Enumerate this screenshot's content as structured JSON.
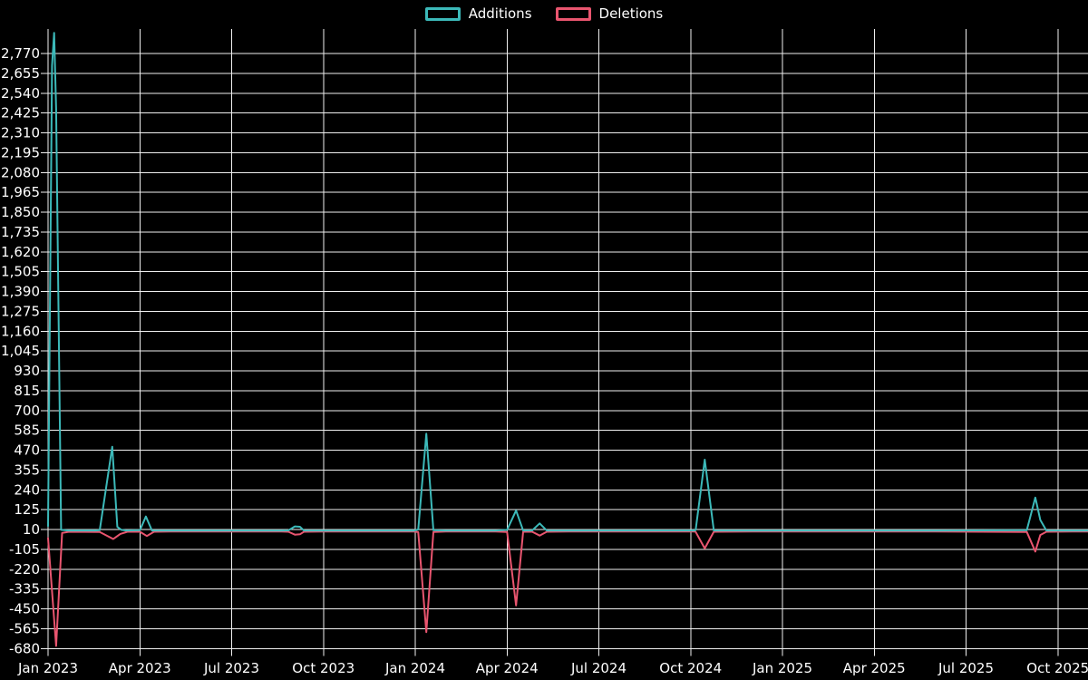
{
  "page": {
    "background": "#000000",
    "grid_color": "#efefef",
    "text_color": "#ffffff"
  },
  "legend": {
    "position": "top",
    "items": [
      {
        "label": "Additions",
        "color": "#3cb9b9"
      },
      {
        "label": "Deletions",
        "color": "#e9556f"
      }
    ]
  },
  "chart_data": {
    "type": "line",
    "title": "",
    "xlabel": "",
    "ylabel": "",
    "grid": true,
    "legend_position": "top-center",
    "x_axis": {
      "unit": "months (weekly data points)",
      "tick_labels": [
        "Jan 2023",
        "Apr 2023",
        "Jul 2023",
        "Oct 2023",
        "Jan 2024",
        "Apr 2024",
        "Jul 2024",
        "Oct 2024",
        "Jan 2025",
        "Apr 2025",
        "Jul 2025",
        "Oct 2025"
      ],
      "tick_month_step": 3,
      "range_months": [
        0,
        34
      ]
    },
    "y_axis": {
      "tick_values": [
        2770,
        2655,
        2540,
        2425,
        2310,
        2195,
        2080,
        1965,
        1850,
        1735,
        1620,
        1505,
        1390,
        1275,
        1160,
        1045,
        930,
        815,
        700,
        585,
        470,
        355,
        240,
        125,
        10,
        -105,
        -220,
        -335,
        -450,
        -565,
        -680
      ],
      "tick_step": 115,
      "ylim": [
        -680,
        2909
      ]
    },
    "series": [
      {
        "name": "Additions",
        "color": "#3cb9b9",
        "points": [
          [
            "2023-01-01",
            30
          ],
          [
            "2023-01-05",
            2700
          ],
          [
            "2023-01-07",
            2890
          ],
          [
            "2023-01-09",
            2450
          ],
          [
            "2023-01-14",
            8
          ],
          [
            "2023-01-21",
            4
          ],
          [
            "2023-02-18",
            4
          ],
          [
            "2023-02-22",
            6
          ],
          [
            "2023-03-04",
            490
          ],
          [
            "2023-03-09",
            25
          ],
          [
            "2023-03-13",
            8
          ],
          [
            "2023-03-18",
            4
          ],
          [
            "2023-04-01",
            6
          ],
          [
            "2023-04-07",
            85
          ],
          [
            "2023-04-13",
            4
          ],
          [
            "2023-05-01",
            3
          ],
          [
            "2023-07-01",
            3
          ],
          [
            "2023-08-20",
            3
          ],
          [
            "2023-08-27",
            5
          ],
          [
            "2023-09-03",
            28
          ],
          [
            "2023-09-08",
            26
          ],
          [
            "2023-09-12",
            4
          ],
          [
            "2023-10-01",
            3
          ],
          [
            "2023-12-30",
            3
          ],
          [
            "2024-01-04",
            10
          ],
          [
            "2024-01-12",
            565
          ],
          [
            "2024-01-19",
            6
          ],
          [
            "2024-02-01",
            3
          ],
          [
            "2024-03-20",
            3
          ],
          [
            "2024-04-01",
            8
          ],
          [
            "2024-04-10",
            120
          ],
          [
            "2024-04-17",
            4
          ],
          [
            "2024-04-26",
            5
          ],
          [
            "2024-05-03",
            45
          ],
          [
            "2024-05-10",
            4
          ],
          [
            "2024-06-01",
            3
          ],
          [
            "2024-10-05",
            4
          ],
          [
            "2024-10-06",
            8
          ],
          [
            "2024-10-15",
            415
          ],
          [
            "2024-10-24",
            4
          ],
          [
            "2024-12-01",
            3
          ],
          [
            "2025-06-01",
            3
          ],
          [
            "2025-08-31",
            6
          ],
          [
            "2025-09-09",
            195
          ],
          [
            "2025-09-14",
            65
          ],
          [
            "2025-09-20",
            4
          ],
          [
            "2025-10-15",
            3
          ],
          [
            "2025-11-01",
            3
          ]
        ]
      },
      {
        "name": "Deletions",
        "color": "#e9556f",
        "points": [
          [
            "2023-01-01",
            -40
          ],
          [
            "2023-01-09",
            -665
          ],
          [
            "2023-01-15",
            -10
          ],
          [
            "2023-01-22",
            -3
          ],
          [
            "2023-02-22",
            -4
          ],
          [
            "2023-03-05",
            -45
          ],
          [
            "2023-03-12",
            -16
          ],
          [
            "2023-03-19",
            -3
          ],
          [
            "2023-04-01",
            -3
          ],
          [
            "2023-04-08",
            -28
          ],
          [
            "2023-04-15",
            -3
          ],
          [
            "2023-05-01",
            -2
          ],
          [
            "2023-08-20",
            -2
          ],
          [
            "2023-08-27",
            -3
          ],
          [
            "2023-09-03",
            -20
          ],
          [
            "2023-09-08",
            -18
          ],
          [
            "2023-09-12",
            -3
          ],
          [
            "2023-10-01",
            -2
          ],
          [
            "2023-12-30",
            -2
          ],
          [
            "2024-01-04",
            -5
          ],
          [
            "2024-01-12",
            -585
          ],
          [
            "2024-01-19",
            -4
          ],
          [
            "2024-02-01",
            -2
          ],
          [
            "2024-03-20",
            -2
          ],
          [
            "2024-04-01",
            -4
          ],
          [
            "2024-04-10",
            -430
          ],
          [
            "2024-04-17",
            -3
          ],
          [
            "2024-04-26",
            -3
          ],
          [
            "2024-05-03",
            -25
          ],
          [
            "2024-05-10",
            -3
          ],
          [
            "2024-06-01",
            -2
          ],
          [
            "2024-10-05",
            -2
          ],
          [
            "2024-10-06",
            -4
          ],
          [
            "2024-10-15",
            -100
          ],
          [
            "2024-10-24",
            -3
          ],
          [
            "2024-12-01",
            -2
          ],
          [
            "2025-06-01",
            -2
          ],
          [
            "2025-08-31",
            -4
          ],
          [
            "2025-09-09",
            -118
          ],
          [
            "2025-09-14",
            -22
          ],
          [
            "2025-09-20",
            -3
          ],
          [
            "2025-10-15",
            -2
          ],
          [
            "2025-11-01",
            -2
          ]
        ]
      }
    ]
  }
}
